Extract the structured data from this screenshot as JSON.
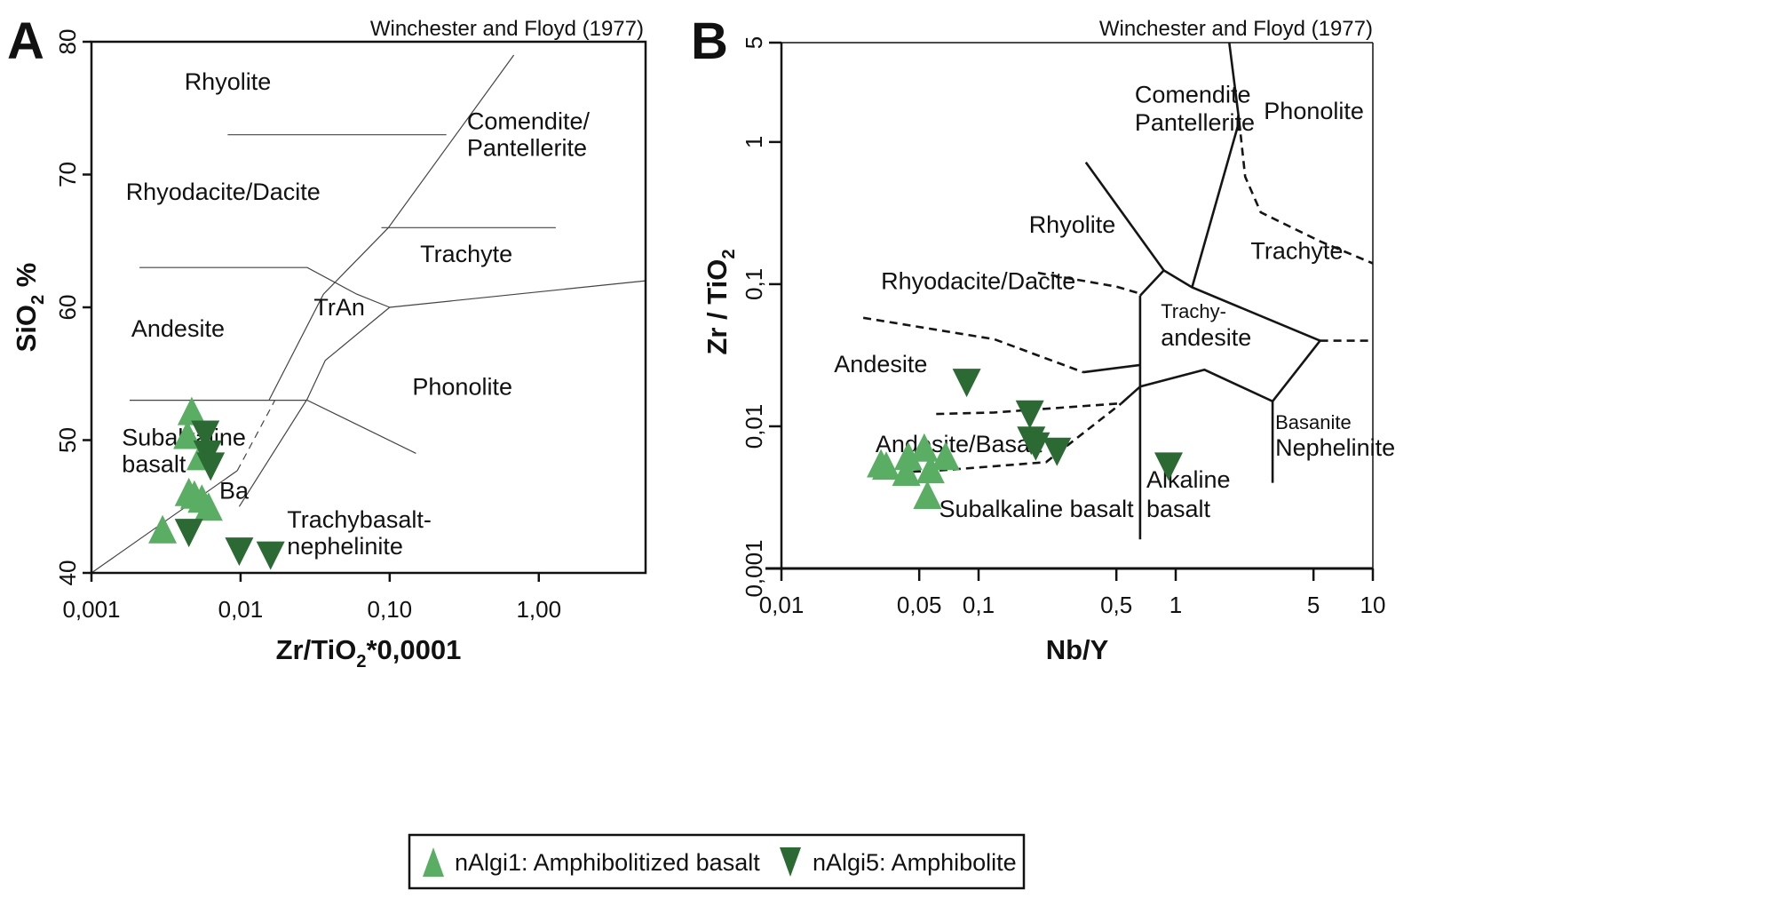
{
  "legend": {
    "items": [
      {
        "label": "nAlgi1: Amphibolitized basalt",
        "marker": "triangle-up",
        "color": "#5aae63"
      },
      {
        "label": "nAlgi5: Amphibolite",
        "marker": "triangle-down",
        "color": "#2b6a33"
      }
    ]
  },
  "chart_data": [
    {
      "panel": "A",
      "type": "scatter",
      "title": "Winchester and Floyd (1977)",
      "xlabel": "Zr/TiO",
      "xlabel_sub": "2",
      "xlabel_suffix": "*0,0001",
      "ylabel": "SiO",
      "ylabel_sub": "2",
      "ylabel_suffix": " %",
      "xscale": "log",
      "xlim": [
        0.001,
        5.2
      ],
      "ylim": [
        40,
        80
      ],
      "xticks": [
        {
          "v": 0.001,
          "label": "0,001"
        },
        {
          "v": 0.01,
          "label": "0,01"
        },
        {
          "v": 0.1,
          "label": "0,10"
        },
        {
          "v": 1,
          "label": "1,00"
        }
      ],
      "yticks": [
        {
          "v": 40,
          "label": "40"
        },
        {
          "v": 50,
          "label": "50"
        },
        {
          "v": 60,
          "label": "60"
        },
        {
          "v": 70,
          "label": "70"
        },
        {
          "v": 80,
          "label": "80"
        }
      ],
      "field_labels": [
        {
          "text": "Rhyolite",
          "x": 0.0042,
          "y": 76.4
        },
        {
          "text": "Comendite/",
          "x": 0.33,
          "y": 73.4
        },
        {
          "text": "Pantellerite",
          "x": 0.33,
          "y": 71.4
        },
        {
          "text": "Rhyodacite/Dacite",
          "x": 0.0017,
          "y": 68.1
        },
        {
          "text": "Trachyte",
          "x": 0.16,
          "y": 63.4
        },
        {
          "text": "TrAn",
          "x": 0.031,
          "y": 59.4
        },
        {
          "text": "Andesite",
          "x": 0.00185,
          "y": 57.8
        },
        {
          "text": "Phonolite",
          "x": 0.142,
          "y": 53.4
        },
        {
          "text": "Subalkaline",
          "x": 0.0016,
          "y": 49.6
        },
        {
          "text": "basalt",
          "x": 0.0016,
          "y": 47.6
        },
        {
          "text": "Ba",
          "x": 0.0072,
          "y": 45.6
        },
        {
          "text": "Trachybasalt-",
          "x": 0.0205,
          "y": 43.4
        },
        {
          "text": "nephelinite",
          "x": 0.0205,
          "y": 41.4
        }
      ],
      "boundaries": [
        {
          "style": "solid",
          "points": [
            [
              0.001,
              40
            ],
            [
              0.0095,
              47.7
            ]
          ]
        },
        {
          "style": "dashed",
          "points": [
            [
              0.0095,
              47.7
            ],
            [
              0.017,
              53
            ]
          ]
        },
        {
          "style": "solid",
          "points": [
            [
              0.0098,
              45
            ],
            [
              0.028,
              53.1
            ],
            [
              0.037,
              56
            ],
            [
              0.1,
              60
            ],
            [
              5.2,
              62
            ]
          ]
        },
        {
          "style": "solid",
          "points": [
            [
              0.0155,
              53
            ],
            [
              0.036,
              61
            ],
            [
              0.098,
              66
            ],
            [
              0.68,
              79
            ]
          ]
        },
        {
          "style": "solid",
          "points": [
            [
              0.0018,
              53
            ],
            [
              0.028,
              53
            ],
            [
              0.15,
              49
            ]
          ]
        },
        {
          "style": "solid",
          "points": [
            [
              0.0021,
              63
            ],
            [
              0.028,
              63
            ],
            [
              0.06,
              61
            ],
            [
              0.1,
              60
            ]
          ]
        },
        {
          "style": "solid",
          "points": [
            [
              0.0082,
              73
            ],
            [
              0.24,
              73
            ]
          ]
        },
        {
          "style": "solid",
          "points": [
            [
              0.088,
              66
            ],
            [
              1.3,
              66
            ]
          ]
        }
      ],
      "series": [
        {
          "name": "nAlgi1: Amphibolitized basalt",
          "marker": "triangle-up",
          "points": [
            [
              0.0047,
              52.2
            ],
            [
              0.0044,
              50.4
            ],
            [
              0.0054,
              48.8
            ],
            [
              0.0045,
              46.1
            ],
            [
              0.0049,
              45.9
            ],
            [
              0.0055,
              45.6
            ],
            [
              0.0061,
              45.0
            ],
            [
              0.003,
              43.3
            ]
          ]
        },
        {
          "name": "nAlgi5: Amphibolite",
          "marker": "triangle-down",
          "points": [
            [
              0.0058,
              50.4
            ],
            [
              0.006,
              48.9
            ],
            [
              0.0063,
              48.0
            ],
            [
              0.0045,
              43.0
            ],
            [
              0.0098,
              41.6
            ],
            [
              0.0159,
              41.3
            ]
          ]
        }
      ]
    },
    {
      "panel": "B",
      "type": "scatter",
      "title": "Winchester and Floyd (1977)",
      "xlabel": "Nb/Y",
      "ylabel": "Zr / TiO",
      "ylabel_sub": "2",
      "xscale": "log",
      "yscale": "log",
      "xlim": [
        0.01,
        10
      ],
      "ylim": [
        0.001,
        5
      ],
      "xticks": [
        {
          "v": 0.01,
          "label": "0,01"
        },
        {
          "v": 0.05,
          "label": "0,05"
        },
        {
          "v": 0.1,
          "label": "0,1"
        },
        {
          "v": 0.5,
          "label": "0,5"
        },
        {
          "v": 1,
          "label": "1"
        },
        {
          "v": 5,
          "label": "5"
        },
        {
          "v": 10,
          "label": "10"
        }
      ],
      "yticks": [
        {
          "v": 0.001,
          "label": "0,001"
        },
        {
          "v": 0.01,
          "label": "0,01"
        },
        {
          "v": 0.1,
          "label": "0,1"
        },
        {
          "v": 1,
          "label": "1"
        },
        {
          "v": 5,
          "label": "5"
        }
      ],
      "field_labels": [
        {
          "text": "Comendite",
          "x": 0.62,
          "y": 1.9,
          "cls": "field"
        },
        {
          "text": "Pantellerite",
          "x": 0.62,
          "y": 1.2,
          "cls": "field"
        },
        {
          "text": "Phonolite",
          "x": 2.8,
          "y": 1.45,
          "cls": "field"
        },
        {
          "text": "Rhyolite",
          "x": 0.18,
          "y": 0.23,
          "cls": "field"
        },
        {
          "text": "Trachyte",
          "x": 2.4,
          "y": 0.15,
          "cls": "field"
        },
        {
          "text": "Rhyodacite/Dacite",
          "x": 0.032,
          "y": 0.092,
          "cls": "field"
        },
        {
          "text": "Trachy-",
          "x": 0.84,
          "y": 0.058,
          "cls": "field-sm"
        },
        {
          "text": "andesite",
          "x": 0.84,
          "y": 0.037,
          "cls": "field"
        },
        {
          "text": "Andesite",
          "x": 0.0185,
          "y": 0.024,
          "cls": "field"
        },
        {
          "text": "Basanite",
          "x": 3.2,
          "y": 0.0096,
          "cls": "field-sm"
        },
        {
          "text": "Nephelinite",
          "x": 3.2,
          "y": 0.0062,
          "cls": "field"
        },
        {
          "text": "Andesite/Basalt",
          "x": 0.03,
          "y": 0.0066,
          "cls": "field"
        },
        {
          "text": "Alkaline",
          "x": 0.71,
          "y": 0.0037,
          "cls": "field"
        },
        {
          "text": "basalt",
          "x": 0.71,
          "y": 0.0023,
          "cls": "field"
        },
        {
          "text": "Subalkaline basalt",
          "x": 0.063,
          "y": 0.0023,
          "cls": "field"
        }
      ],
      "boundaries": [
        {
          "style": "solid",
          "points": [
            [
              0.66,
              0.0016
            ],
            [
              0.66,
              0.083
            ]
          ]
        },
        {
          "style": "solid",
          "points": [
            [
              0.66,
              0.083
            ],
            [
              0.87,
              0.125
            ],
            [
              1.21,
              0.095
            ],
            [
              5.4,
              0.04
            ],
            [
              3.1,
              0.015
            ],
            [
              1.4,
              0.025
            ],
            [
              0.66,
              0.019
            ]
          ]
        },
        {
          "style": "solid",
          "points": [
            [
              0.87,
              0.125
            ],
            [
              0.35,
              0.72
            ]
          ]
        },
        {
          "style": "solid",
          "points": [
            [
              1.21,
              0.095
            ],
            [
              2.1,
              1.4
            ],
            [
              1.87,
              5
            ]
          ]
        },
        {
          "style": "solid",
          "points": [
            [
              3.1,
              0.015
            ],
            [
              3.1,
              0.004
            ]
          ]
        },
        {
          "style": "solid",
          "points": [
            [
              0.34,
              0.024
            ],
            [
              0.66,
              0.027
            ]
          ]
        },
        {
          "style": "solid",
          "points": [
            [
              0.66,
              0.019
            ],
            [
              0.53,
              0.0145
            ]
          ]
        },
        {
          "style": "dashed",
          "points": [
            [
              2.1,
              1.4
            ],
            [
              2.25,
              0.57
            ],
            [
              2.7,
              0.32
            ],
            [
              5.4,
              0.2
            ],
            [
              10,
              0.14
            ]
          ]
        },
        {
          "style": "dashed",
          "points": [
            [
              0.2,
              0.12
            ],
            [
              0.5,
              0.096
            ],
            [
              0.64,
              0.087
            ]
          ]
        },
        {
          "style": "dashed",
          "points": [
            [
              0.026,
              0.058
            ],
            [
              0.12,
              0.041
            ],
            [
              0.34,
              0.024
            ]
          ]
        },
        {
          "style": "dashed",
          "points": [
            [
              5.4,
              0.04
            ],
            [
              10,
              0.04
            ]
          ]
        },
        {
          "style": "dashed",
          "points": [
            [
              0.061,
              0.0122
            ],
            [
              0.12,
              0.0125
            ],
            [
              0.53,
              0.0145
            ]
          ]
        },
        {
          "style": "dashed",
          "points": [
            [
              0.034,
              0.0047
            ],
            [
              0.065,
              0.0049
            ],
            [
              0.22,
              0.0056
            ],
            [
              0.53,
              0.0145
            ]
          ]
        }
      ],
      "series": [
        {
          "name": "nAlgi1: Amphibolitized basalt",
          "marker": "triangle-up",
          "points": [
            [
              0.032,
              0.0055
            ],
            [
              0.034,
              0.0053
            ],
            [
              0.043,
              0.0048
            ],
            [
              0.044,
              0.0062
            ],
            [
              0.053,
              0.0071
            ],
            [
              0.057,
              0.005
            ],
            [
              0.068,
              0.0062
            ],
            [
              0.055,
              0.0033
            ]
          ]
        },
        {
          "name": "nAlgi5: Amphibolite",
          "marker": "triangle-down",
          "points": [
            [
              0.087,
              0.0202
            ],
            [
              0.182,
              0.0121
            ],
            [
              0.185,
              0.0079
            ],
            [
              0.195,
              0.0072
            ],
            [
              0.25,
              0.0066
            ],
            [
              0.92,
              0.0052
            ]
          ]
        }
      ]
    }
  ]
}
